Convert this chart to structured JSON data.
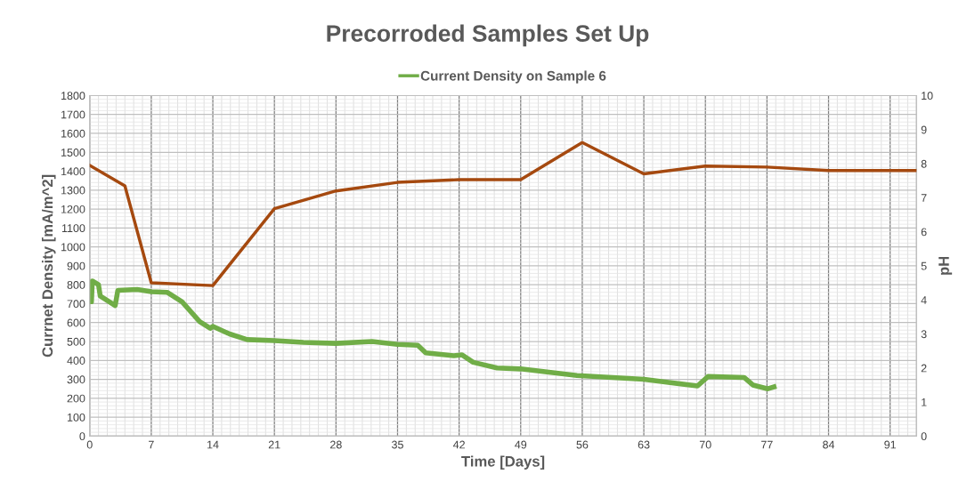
{
  "chart_data": {
    "type": "line",
    "title": "Precorroded Samples Set Up",
    "xlabel": "Time [Days]",
    "ylabel": "Currnet Density [mA/m^2]",
    "y2label": "pH",
    "xlim": [
      0,
      94
    ],
    "xticks": [
      0,
      7,
      14,
      21,
      28,
      35,
      42,
      49,
      56,
      63,
      70,
      77,
      84,
      91
    ],
    "ylim": [
      0,
      1800
    ],
    "yticks": [
      0,
      100,
      200,
      300,
      400,
      500,
      600,
      700,
      800,
      900,
      1000,
      1100,
      1200,
      1300,
      1400,
      1500,
      1600,
      1700,
      1800
    ],
    "y2lim": [
      0,
      10
    ],
    "y2ticks": [
      0,
      1,
      2,
      3,
      4,
      5,
      6,
      7,
      8,
      9,
      10
    ],
    "grid": true,
    "legend": "top",
    "marker": "none",
    "line_style": "solid",
    "series": [
      {
        "name": "Current Density on Sample 6",
        "color": "#70ad47",
        "x": [
          0,
          0.2,
          0.3,
          1.0,
          1.2,
          2.9,
          3.2,
          5.4,
          7,
          8.8,
          10.5,
          12.5,
          13.7,
          14,
          15.9,
          17.9,
          21,
          24.3,
          28,
          32.1,
          35,
          37.3,
          38.2,
          41.4,
          42.3,
          43.6,
          46.3,
          49,
          55.4,
          63,
          65.6,
          69.1,
          70.3,
          74.4,
          75.4,
          77.1,
          77.8
        ],
        "values": [
          710,
          710,
          820,
          800,
          740,
          690,
          770,
          775,
          763,
          760,
          710,
          605,
          570,
          580,
          540,
          510,
          505,
          495,
          490,
          500,
          485,
          480,
          440,
          425,
          430,
          390,
          360,
          355,
          320,
          300,
          285,
          265,
          315,
          310,
          270,
          250,
          260
        ]
      },
      {
        "color": "#a5490f",
        "axis": "y2",
        "x": [
          0,
          4,
          7,
          14,
          21,
          28,
          35,
          42,
          49,
          56,
          63,
          70,
          77,
          84,
          91,
          94
        ],
        "values": [
          7.95,
          7.35,
          4.5,
          4.42,
          6.68,
          7.2,
          7.45,
          7.53,
          7.53,
          8.62,
          7.7,
          7.93,
          7.9,
          7.8,
          7.8,
          7.8
        ]
      }
    ]
  }
}
